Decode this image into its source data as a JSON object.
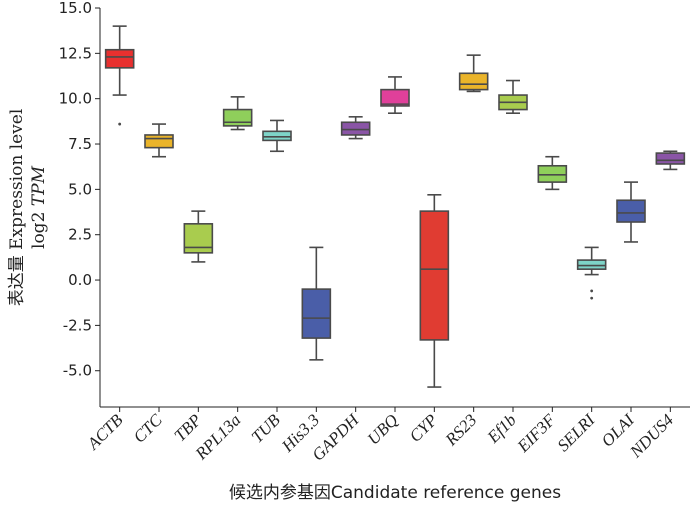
{
  "chart_data": {
    "type": "box",
    "xlabel": "候选内参基因Candidate reference genes",
    "ylabel": "表达量 Expression level",
    "ylabel_line2_prefix": "log2 ",
    "ylabel_line2_italic": "TPM",
    "ylim": [
      -7.0,
      15.0
    ],
    "yticks": [
      -5.0,
      -2.5,
      0.0,
      2.5,
      5.0,
      7.5,
      10.0,
      12.5,
      15.0
    ],
    "ytick_labels": [
      "-5.0",
      "-2.5",
      "0.0",
      "2.5",
      "5.0",
      "7.5",
      "10.0",
      "12.5",
      "15.0"
    ],
    "grid": false,
    "categories": [
      {
        "label": "ACTB",
        "whisker_low": 10.2,
        "q1": 11.7,
        "median": 12.3,
        "q3": 12.7,
        "whisker_high": 14.0,
        "outliers": [
          8.6
        ],
        "color": "#e8302f"
      },
      {
        "label": "CTC",
        "whisker_low": 6.8,
        "q1": 7.3,
        "median": 7.8,
        "q3": 8.0,
        "whisker_high": 8.6,
        "outliers": [],
        "color": "#eab42a"
      },
      {
        "label": "TBP",
        "whisker_low": 1.0,
        "q1": 1.5,
        "median": 1.8,
        "q3": 3.1,
        "whisker_high": 3.8,
        "outliers": [],
        "color": "#a9cc4e"
      },
      {
        "label": "RPL13a",
        "whisker_low": 8.3,
        "q1": 8.5,
        "median": 8.7,
        "q3": 9.4,
        "whisker_high": 10.1,
        "outliers": [],
        "color": "#8fcf5b"
      },
      {
        "label": "TUB",
        "whisker_low": 7.1,
        "q1": 7.7,
        "median": 7.9,
        "q3": 8.2,
        "whisker_high": 8.8,
        "outliers": [],
        "color": "#7ed4c8"
      },
      {
        "label": "His3.3",
        "whisker_low": -4.4,
        "q1": -3.2,
        "median": -2.1,
        "q3": -0.5,
        "whisker_high": 1.8,
        "outliers": [],
        "color": "#4a5ea8"
      },
      {
        "label": "GAPDH",
        "whisker_low": 7.8,
        "q1": 8.0,
        "median": 8.3,
        "q3": 8.7,
        "whisker_high": 9.0,
        "outliers": [],
        "color": "#8a55a6"
      },
      {
        "label": "UBQ",
        "whisker_low": 9.2,
        "q1": 9.6,
        "median": 9.7,
        "q3": 10.5,
        "whisker_high": 11.2,
        "outliers": [],
        "color": "#e0409a"
      },
      {
        "label": "CYP",
        "whisker_low": -5.9,
        "q1": -3.3,
        "median": 0.6,
        "q3": 3.8,
        "whisker_high": 4.7,
        "outliers": [],
        "color": "#e03c32"
      },
      {
        "label": "RS23",
        "whisker_low": 10.4,
        "q1": 10.5,
        "median": 10.8,
        "q3": 11.4,
        "whisker_high": 12.4,
        "outliers": [],
        "color": "#eab42a"
      },
      {
        "label": "Ef1b",
        "whisker_low": 9.2,
        "q1": 9.4,
        "median": 9.8,
        "q3": 10.2,
        "whisker_high": 11.0,
        "outliers": [],
        "color": "#a9cc4e"
      },
      {
        "label": "EIF3F",
        "whisker_low": 5.0,
        "q1": 5.4,
        "median": 5.8,
        "q3": 6.3,
        "whisker_high": 6.8,
        "outliers": [],
        "color": "#8fcf5b"
      },
      {
        "label": "SELRI",
        "whisker_low": 0.3,
        "q1": 0.6,
        "median": 0.8,
        "q3": 1.1,
        "whisker_high": 1.8,
        "outliers": [
          -0.6,
          -1.0
        ],
        "color": "#7ed4c8"
      },
      {
        "label": "OLAI",
        "whisker_low": 2.1,
        "q1": 3.2,
        "median": 3.7,
        "q3": 4.4,
        "whisker_high": 5.4,
        "outliers": [],
        "color": "#4a5ea8"
      },
      {
        "label": "NDUS4",
        "whisker_low": 6.1,
        "q1": 6.4,
        "median": 6.6,
        "q3": 7.0,
        "whisker_high": 7.1,
        "outliers": [],
        "color": "#8a55a6"
      }
    ]
  }
}
